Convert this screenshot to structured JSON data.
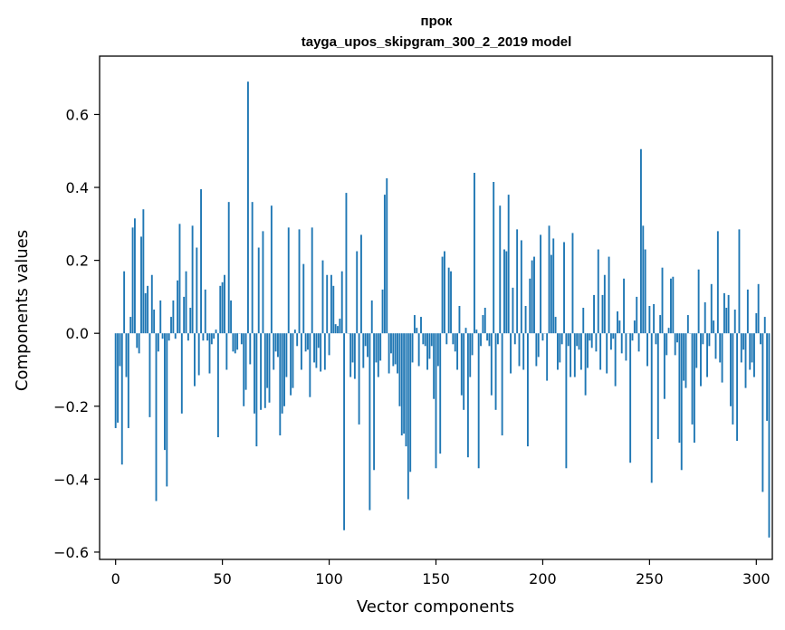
{
  "chart_data": {
    "type": "bar",
    "title": "прок",
    "subtitle": "tayga_upos_skipgram_300_2_2019 model",
    "xlabel": "Vector components",
    "ylabel": "Components values",
    "xlim": [
      -7.5,
      307.5
    ],
    "ylim": [
      -0.62,
      0.76
    ],
    "xticks": [
      0,
      50,
      100,
      150,
      200,
      250,
      300
    ],
    "xtick_labels": [
      "0",
      "50",
      "100",
      "150",
      "200",
      "250",
      "300"
    ],
    "yticks": [
      -0.6,
      -0.4,
      -0.2,
      0.0,
      0.2,
      0.4,
      0.6
    ],
    "ytick_labels": [
      "−0.6",
      "−0.4",
      "−0.2",
      "0.0",
      "0.2",
      "0.4",
      "0.6"
    ],
    "bar_color": "#1f77b4",
    "series": [
      {
        "name": "прок",
        "values": [
          -0.26,
          -0.245,
          -0.09,
          -0.36,
          0.17,
          -0.12,
          -0.26,
          0.045,
          0.29,
          0.315,
          -0.04,
          -0.055,
          0.265,
          0.34,
          0.11,
          0.13,
          -0.23,
          0.16,
          0.065,
          -0.46,
          -0.05,
          0.09,
          -0.015,
          -0.32,
          -0.42,
          -0.02,
          0.045,
          0.09,
          -0.015,
          0.145,
          0.3,
          -0.22,
          0.1,
          0.17,
          -0.02,
          0.07,
          0.295,
          -0.145,
          0.235,
          -0.115,
          0.395,
          -0.02,
          0.12,
          -0.02,
          -0.11,
          -0.03,
          -0.015,
          0.01,
          -0.285,
          0.13,
          0.14,
          0.16,
          -0.1,
          0.36,
          0.09,
          -0.05,
          -0.055,
          -0.045,
          0.0,
          -0.03,
          -0.2,
          -0.155,
          0.69,
          -0.085,
          0.36,
          -0.22,
          -0.31,
          0.235,
          -0.21,
          0.28,
          -0.205,
          -0.15,
          -0.19,
          0.35,
          -0.1,
          -0.05,
          -0.065,
          -0.28,
          -0.22,
          -0.2,
          -0.12,
          0.29,
          -0.17,
          -0.15,
          0.01,
          -0.035,
          0.285,
          -0.1,
          0.19,
          -0.05,
          -0.045,
          -0.175,
          0.29,
          -0.08,
          -0.095,
          -0.04,
          -0.105,
          0.2,
          -0.1,
          0.16,
          -0.06,
          0.16,
          0.13,
          0.025,
          0.02,
          0.04,
          0.17,
          -0.54,
          0.385,
          0.0,
          -0.12,
          -0.08,
          -0.125,
          0.225,
          -0.25,
          0.27,
          -0.095,
          -0.035,
          -0.065,
          -0.485,
          0.09,
          -0.375,
          -0.08,
          -0.12,
          -0.075,
          0.12,
          0.38,
          0.425,
          -0.11,
          -0.055,
          -0.09,
          -0.085,
          -0.11,
          -0.2,
          -0.28,
          -0.275,
          -0.31,
          -0.455,
          -0.38,
          -0.08,
          0.05,
          0.015,
          -0.09,
          0.045,
          -0.03,
          -0.035,
          -0.1,
          -0.07,
          -0.035,
          -0.18,
          -0.37,
          -0.09,
          -0.33,
          0.21,
          0.225,
          -0.03,
          0.18,
          0.17,
          -0.03,
          -0.05,
          -0.1,
          0.075,
          -0.17,
          -0.21,
          0.015,
          -0.34,
          -0.12,
          -0.06,
          0.44,
          0.01,
          -0.37,
          -0.035,
          0.05,
          0.07,
          -0.02,
          -0.035,
          -0.17,
          0.415,
          -0.21,
          -0.03,
          0.35,
          -0.28,
          0.23,
          0.225,
          0.38,
          -0.11,
          0.125,
          -0.03,
          0.285,
          -0.09,
          0.255,
          -0.1,
          0.075,
          -0.31,
          0.15,
          0.2,
          0.21,
          -0.09,
          -0.065,
          0.27,
          -0.02,
          0.0,
          -0.13,
          0.295,
          0.215,
          0.26,
          0.045,
          -0.1,
          -0.08,
          -0.03,
          0.25,
          -0.37,
          -0.035,
          -0.12,
          0.275,
          -0.12,
          -0.035,
          -0.045,
          -0.1,
          0.07,
          -0.17,
          -0.095,
          -0.02,
          -0.04,
          0.105,
          -0.05,
          0.23,
          -0.1,
          0.105,
          0.16,
          -0.11,
          0.21,
          -0.045,
          -0.015,
          -0.145,
          0.06,
          0.035,
          -0.055,
          0.15,
          -0.075,
          0.0,
          -0.355,
          -0.02,
          0.035,
          0.1,
          -0.05,
          0.505,
          0.295,
          0.23,
          -0.09,
          0.075,
          -0.41,
          0.08,
          -0.03,
          -0.29,
          0.05,
          0.18,
          -0.18,
          -0.06,
          0.015,
          0.15,
          0.155,
          -0.06,
          -0.025,
          -0.3,
          -0.375,
          -0.13,
          -0.15,
          0.05,
          0.0,
          -0.25,
          -0.3,
          -0.095,
          0.175,
          -0.145,
          -0.03,
          0.085,
          -0.12,
          -0.035,
          0.135,
          0.035,
          -0.07,
          0.28,
          -0.08,
          -0.135,
          0.11,
          0.07,
          0.105,
          -0.2,
          -0.25,
          0.065,
          -0.295,
          0.285,
          -0.08,
          -0.045,
          -0.15,
          0.12,
          -0.1,
          -0.08,
          -0.12,
          0.055,
          0.135,
          -0.03,
          -0.435,
          0.045,
          -0.24,
          -0.56
        ]
      }
    ]
  }
}
